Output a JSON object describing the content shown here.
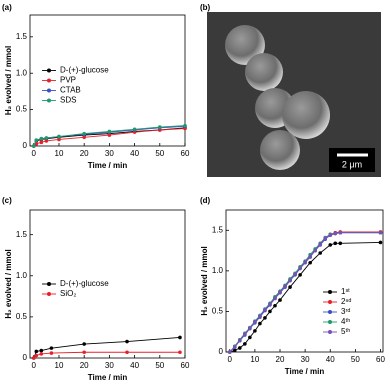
{
  "chart_data": [
    {
      "type": "line",
      "label": "(a)",
      "xlabel": "Time / min",
      "ylabel": "H₂ evolved / mmol",
      "xlim": [
        -1.5,
        60
      ],
      "xticks": [
        0,
        10,
        20,
        30,
        40,
        50,
        60
      ],
      "ylim": [
        0,
        1.8
      ],
      "yticks": [
        0,
        0.5,
        {
          "value": 1,
          "label": "1.0"
        },
        1.5
      ],
      "legend": "center-left",
      "series": [
        {
          "name": "D-(+)-glucose",
          "color": "#000000",
          "x": [
            0,
            1,
            3,
            5,
            10,
            20,
            30,
            40,
            50,
            60
          ],
          "values": [
            0,
            0.07,
            0.09,
            0.1,
            0.12,
            0.15,
            0.17,
            0.2,
            0.22,
            0.25
          ]
        },
        {
          "name": "PVP",
          "color": "#e8202a",
          "x": [
            0,
            1,
            3,
            5,
            10,
            20,
            30,
            40,
            50,
            60
          ],
          "values": [
            0,
            0.03,
            0.05,
            0.07,
            0.09,
            0.12,
            0.15,
            0.19,
            0.22,
            0.24
          ]
        },
        {
          "name": "CTAB",
          "color": "#3a4fc0",
          "x": [
            0,
            1,
            3,
            5,
            10,
            20,
            30,
            40,
            50,
            60
          ],
          "values": [
            0,
            0.08,
            0.1,
            0.11,
            0.13,
            0.16,
            0.19,
            0.22,
            0.25,
            0.27
          ]
        },
        {
          "name": "SDS",
          "color": "#1e9a6a",
          "x": [
            0,
            1,
            3,
            5,
            10,
            20,
            30,
            40,
            50,
            60
          ],
          "values": [
            0,
            0.08,
            0.1,
            0.11,
            0.13,
            0.17,
            0.2,
            0.23,
            0.26,
            0.28
          ]
        }
      ]
    },
    {
      "type": "line",
      "label": "(c)",
      "xlabel": "Time / min",
      "ylabel": "H₂ evolved / mmol",
      "xlim": [
        -1.5,
        60
      ],
      "xticks": [
        0,
        10,
        20,
        30,
        40,
        50,
        60
      ],
      "ylim": [
        0,
        1.8
      ],
      "yticks": [
        0,
        0.5,
        {
          "value": 1,
          "label": "1.0"
        },
        1.5
      ],
      "legend": "center-left",
      "series": [
        {
          "name": "D-(+)-glucose",
          "color": "#000000",
          "x": [
            0,
            1,
            3,
            7,
            20,
            37,
            58
          ],
          "values": [
            0,
            0.08,
            0.09,
            0.12,
            0.17,
            0.2,
            0.25
          ]
        },
        {
          "name": "SiO₂",
          "color": "#e8202a",
          "x": [
            0,
            1,
            3,
            7,
            20,
            37,
            58
          ],
          "values": [
            0,
            0.03,
            0.05,
            0.06,
            0.07,
            0.07,
            0.07
          ]
        }
      ]
    },
    {
      "type": "line",
      "label": "(d)",
      "xlabel": "Time / min",
      "ylabel": "H₂ evolved / mmol",
      "xlim": [
        -1.5,
        61
      ],
      "xticks": [
        0,
        10,
        20,
        30,
        40,
        50,
        60
      ],
      "ylim": [
        0,
        1.75
      ],
      "yticks": [
        0,
        0.5,
        {
          "value": 1,
          "label": "1.0"
        },
        1.5
      ],
      "legend": "lower-right",
      "series": [
        {
          "name": "1ˢᵗ",
          "color": "#000000",
          "x": [
            0,
            2,
            4,
            6,
            8,
            10,
            12,
            14,
            16,
            18,
            20,
            24,
            28,
            32,
            36,
            40,
            42,
            44,
            60
          ],
          "values": [
            0,
            0.02,
            0.05,
            0.1,
            0.18,
            0.26,
            0.35,
            0.42,
            0.5,
            0.57,
            0.64,
            0.8,
            0.95,
            1.1,
            1.22,
            1.32,
            1.34,
            1.34,
            1.35
          ]
        },
        {
          "name": "2ⁿᵈ",
          "color": "#e8202a",
          "x": [
            0,
            2,
            4,
            6,
            8,
            10,
            12,
            14,
            16,
            18,
            20,
            22,
            24,
            26,
            28,
            30,
            32,
            34,
            36,
            38,
            40,
            42,
            44,
            60
          ],
          "values": [
            0,
            0.07,
            0.15,
            0.22,
            0.3,
            0.37,
            0.44,
            0.52,
            0.59,
            0.67,
            0.74,
            0.81,
            0.89,
            0.96,
            1.04,
            1.11,
            1.18,
            1.26,
            1.33,
            1.4,
            1.45,
            1.47,
            1.48,
            1.48
          ]
        },
        {
          "name": "3ʳᵈ",
          "color": "#3a4fc0",
          "x": [
            0,
            2,
            4,
            6,
            8,
            10,
            12,
            14,
            16,
            18,
            20,
            22,
            24,
            26,
            28,
            30,
            32,
            34,
            36,
            38,
            40,
            42,
            44,
            60
          ],
          "values": [
            0,
            0.06,
            0.14,
            0.21,
            0.29,
            0.36,
            0.43,
            0.51,
            0.58,
            0.66,
            0.73,
            0.8,
            0.88,
            0.95,
            1.03,
            1.1,
            1.17,
            1.25,
            1.32,
            1.39,
            1.44,
            1.46,
            1.47,
            1.47
          ]
        },
        {
          "name": "4ᵗʰ",
          "color": "#1e9a6a",
          "x": [
            0,
            2,
            4,
            6,
            8,
            10,
            12,
            14,
            16,
            18,
            20,
            22,
            24,
            26,
            28,
            30,
            32,
            34,
            36,
            38,
            40,
            42,
            44,
            60
          ],
          "values": [
            0,
            0.07,
            0.15,
            0.23,
            0.3,
            0.38,
            0.45,
            0.53,
            0.6,
            0.68,
            0.75,
            0.82,
            0.9,
            0.97,
            1.05,
            1.12,
            1.2,
            1.27,
            1.34,
            1.41,
            1.45,
            1.46,
            1.47,
            1.47
          ]
        },
        {
          "name": "5ᵗʰ",
          "color": "#7b4fb8",
          "x": [
            0,
            2,
            4,
            6,
            8,
            10,
            12,
            14,
            16,
            18,
            20,
            22,
            24,
            26,
            28,
            30,
            32,
            34,
            36,
            38,
            40,
            42,
            44,
            60
          ],
          "values": [
            0,
            0.06,
            0.14,
            0.22,
            0.29,
            0.37,
            0.44,
            0.52,
            0.59,
            0.66,
            0.74,
            0.81,
            0.88,
            0.96,
            1.03,
            1.11,
            1.18,
            1.25,
            1.33,
            1.4,
            1.44,
            1.46,
            1.47,
            1.47
          ]
        }
      ]
    }
  ],
  "image_panel": {
    "label": "(b)",
    "scale_bar": "2 μm"
  }
}
